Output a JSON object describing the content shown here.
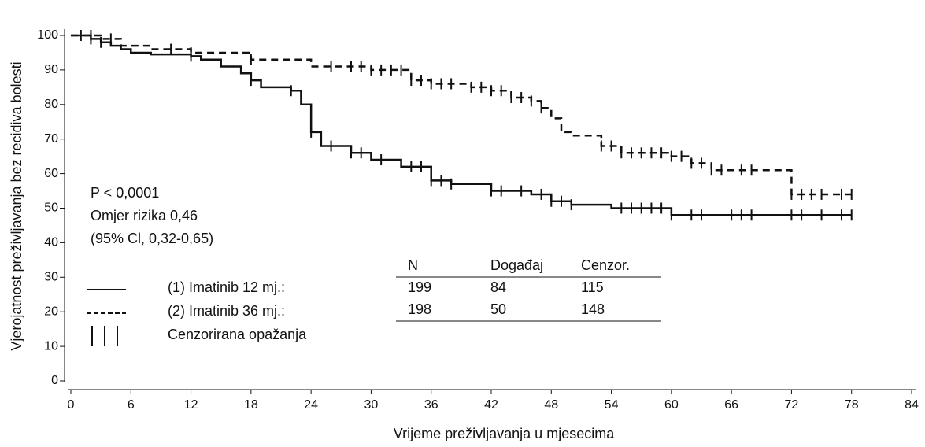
{
  "chart_data": {
    "type": "kaplan-meier",
    "xlabel": "Vrijeme preživljavanja u mjesecima",
    "ylabel": "Vjerojatnost preživljavanja bez recidiva bolesti",
    "xlim": [
      0,
      84
    ],
    "xticks": [
      0,
      6,
      12,
      18,
      24,
      30,
      36,
      42,
      48,
      54,
      60,
      66,
      72,
      78,
      84
    ],
    "ylim": [
      0,
      100
    ],
    "yticks": [
      0,
      10,
      20,
      30,
      40,
      50,
      60,
      70,
      80,
      90,
      100
    ],
    "annotations": [
      "P < 0,0001",
      "Omjer rizika 0,46",
      "(95% Cl, 0,32-0,65)"
    ],
    "censor_legend": "Cenzorirana opažanja",
    "table": {
      "header": [
        "N",
        "Događaj",
        "Cenzor."
      ],
      "rows": [
        [
          "199",
          "84",
          "115"
        ],
        [
          "198",
          "50",
          "148"
        ]
      ]
    },
    "series": [
      {
        "name": "(1) Imatinib 12 mj.:",
        "color": "#111111",
        "dashed": false,
        "x": [
          0,
          2,
          3,
          4,
          5,
          6,
          8,
          12,
          13,
          15,
          17,
          18,
          19,
          22,
          23,
          24,
          25,
          28,
          30,
          33,
          36,
          38,
          42,
          46,
          48,
          50,
          54,
          60,
          78
        ],
        "values": [
          100,
          99,
          98,
          97,
          96,
          95,
          94.5,
          94,
          93,
          91,
          89,
          87,
          85,
          84,
          80,
          72,
          68,
          66,
          64,
          62,
          58,
          57,
          55,
          54,
          52,
          51,
          50,
          48,
          48
        ],
        "censored": [
          1,
          2,
          3,
          12,
          18,
          22,
          24,
          26,
          28,
          29,
          31,
          34,
          35,
          36,
          37,
          38,
          42,
          43,
          45,
          47,
          48,
          49,
          50,
          55,
          56,
          57,
          58,
          59,
          60,
          62,
          63,
          66,
          67,
          68,
          72,
          73,
          75,
          77,
          78
        ]
      },
      {
        "name": "(2) Imatinib 36 mj.:",
        "color": "#111111",
        "dashed": true,
        "x": [
          0,
          3,
          5,
          8,
          12,
          18,
          24,
          30,
          34,
          36,
          40,
          42,
          44,
          46,
          47,
          48,
          49,
          50,
          53,
          55,
          60,
          62,
          64,
          71,
          72,
          78
        ],
        "values": [
          100,
          99,
          97,
          96,
          95,
          93,
          91,
          90,
          87,
          86,
          85,
          84,
          82,
          81,
          79,
          76,
          72,
          71,
          68,
          66,
          65,
          63,
          61,
          61,
          54,
          54
        ],
        "censored": [
          1,
          2,
          4,
          10,
          12,
          18,
          26,
          28,
          29,
          30,
          31,
          32,
          33,
          34,
          35,
          36,
          37,
          38,
          40,
          41,
          42,
          43,
          44,
          45,
          46,
          47,
          53,
          54,
          55,
          56,
          57,
          58,
          59,
          60,
          61,
          62,
          63,
          64,
          65,
          67,
          68,
          72,
          73,
          74,
          75,
          77,
          78
        ]
      }
    ]
  }
}
